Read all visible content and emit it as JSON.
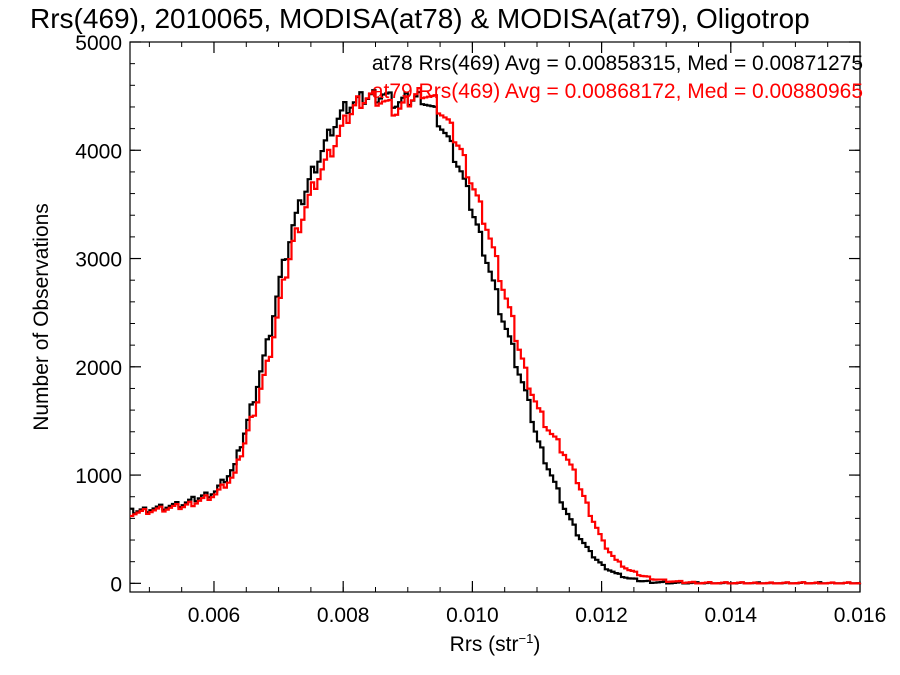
{
  "chart_data": {
    "type": "line",
    "title": "Rrs(469), 2010065, MODISA(at78) & MODISA(at79), Oligotrop",
    "xlabel": "Rrs (str",
    "xlabel_sup": "−1",
    "xlabel_close": ")",
    "ylabel": "Number of Observations",
    "xlim": [
      0.0047,
      0.016
    ],
    "ylim": [
      -80,
      5000
    ],
    "xticks": [
      0.006,
      0.008,
      0.01,
      0.012,
      0.014,
      0.016
    ],
    "xtick_labels": [
      "0.006",
      "0.008",
      "0.010",
      "0.012",
      "0.014",
      "0.016"
    ],
    "yticks": [
      0,
      1000,
      2000,
      3000,
      4000,
      5000
    ],
    "ytick_labels": [
      "0",
      "1000",
      "2000",
      "3000",
      "4000",
      "5000"
    ],
    "grid": false,
    "legend_position": "top-right",
    "series": [
      {
        "name": "at78",
        "color": "#000000",
        "annotation": "at78 Rrs(469) Avg = 0.00858315, Med = 0.00871275",
        "x": [
          0.0047,
          0.005,
          0.0055,
          0.006,
          0.0063,
          0.0065,
          0.0068,
          0.007,
          0.0072,
          0.0075,
          0.0078,
          0.008,
          0.0082,
          0.0084,
          0.0086,
          0.0088,
          0.009,
          0.0092,
          0.0094,
          0.0096,
          0.0098,
          0.01,
          0.0102,
          0.0104,
          0.0106,
          0.0108,
          0.011,
          0.0112,
          0.0114,
          0.0116,
          0.0118,
          0.012,
          0.0122,
          0.0124,
          0.0126,
          0.0128,
          0.013,
          0.0132,
          0.0135,
          0.014,
          0.016
        ],
        "y": [
          660,
          690,
          730,
          850,
          1080,
          1500,
          2200,
          2800,
          3300,
          3800,
          4200,
          4380,
          4450,
          4500,
          4520,
          4430,
          4470,
          4500,
          4350,
          4100,
          3800,
          3400,
          3000,
          2550,
          2150,
          1750,
          1300,
          1000,
          700,
          460,
          280,
          160,
          90,
          45,
          22,
          12,
          6,
          3,
          1,
          0,
          0
        ]
      },
      {
        "name": "at79",
        "color": "#ff0000",
        "annotation": "at79 Rrs(469) Avg = 0.00868172, Med = 0.00880965",
        "x": [
          0.0047,
          0.005,
          0.0055,
          0.006,
          0.0063,
          0.0065,
          0.0068,
          0.007,
          0.0072,
          0.0075,
          0.0078,
          0.008,
          0.0082,
          0.0084,
          0.0086,
          0.0088,
          0.009,
          0.0092,
          0.0094,
          0.0096,
          0.0098,
          0.01,
          0.0102,
          0.0104,
          0.0106,
          0.0108,
          0.011,
          0.0112,
          0.0114,
          0.0116,
          0.0118,
          0.012,
          0.0122,
          0.0124,
          0.0126,
          0.0128,
          0.013,
          0.0132,
          0.0135,
          0.014,
          0.016
        ],
        "y": [
          650,
          670,
          710,
          820,
          1000,
          1400,
          2000,
          2600,
          3150,
          3650,
          4000,
          4250,
          4450,
          4500,
          4450,
          4350,
          4450,
          4550,
          4450,
          4250,
          4000,
          3650,
          3300,
          2850,
          2400,
          1950,
          1600,
          1380,
          1200,
          950,
          650,
          380,
          210,
          120,
          70,
          40,
          22,
          12,
          5,
          1,
          0
        ]
      }
    ]
  }
}
